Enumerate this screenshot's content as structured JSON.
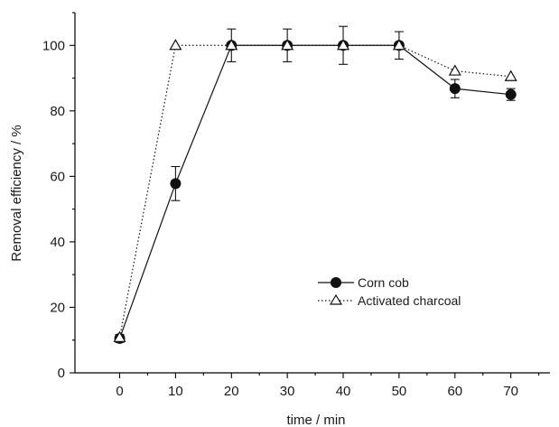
{
  "chart_data": {
    "type": "line",
    "title": "",
    "xlabel": "time / min",
    "ylabel": "Removal efficiency / %",
    "xlim": [
      -8,
      77
    ],
    "ylim": [
      0,
      110
    ],
    "x_ticks": [
      0,
      10,
      20,
      30,
      40,
      50,
      60,
      70
    ],
    "x_tick_labels": [
      "0",
      "10",
      "20",
      "30",
      "40",
      "50",
      "60",
      "70"
    ],
    "y_ticks": [
      0,
      20,
      40,
      60,
      80,
      100
    ],
    "y_tick_labels": [
      "0",
      "20",
      "40",
      "60",
      "80",
      "100"
    ],
    "grid": false,
    "legend_position": "center-right",
    "x": [
      0,
      10,
      20,
      30,
      40,
      50,
      60,
      70
    ],
    "series": [
      {
        "name": "Corn cob",
        "values": [
          10.5,
          57.8,
          100,
          100,
          100,
          100,
          86.8,
          85
        ],
        "errors": [
          1.2,
          5.2,
          5.0,
          5.0,
          5.8,
          4.2,
          2.8,
          1.8
        ],
        "marker": "filled-circle",
        "line_style": "solid",
        "color": "#111111"
      },
      {
        "name": "Activated charcoal",
        "values": [
          10.8,
          100,
          100,
          100,
          100,
          100,
          92.2,
          90.5
        ],
        "errors": [
          0,
          0,
          0,
          0,
          0,
          0,
          0,
          0
        ],
        "marker": "open-triangle",
        "line_style": "dotted",
        "color": "#111111"
      }
    ]
  }
}
